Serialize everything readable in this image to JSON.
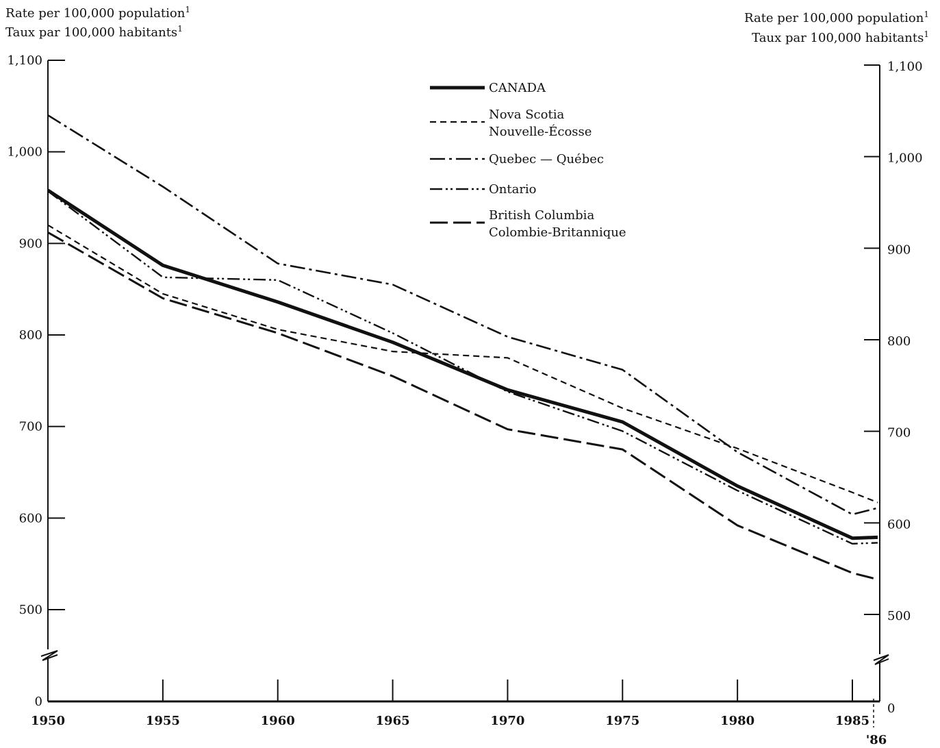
{
  "chart_data": {
    "type": "line",
    "title": "",
    "ylabel_left": [
      "Rate per 100,000 population",
      "Taux par 100,000 habitants"
    ],
    "ylabel_right": [
      "Rate per 100,000 population",
      "Taux par 100,000 habitants"
    ],
    "ylabel_superscript": "1",
    "xlabel": "",
    "x_ticks": [
      "1950",
      "1955",
      "1960",
      "1965",
      "1970",
      "1975",
      "1980",
      "1985"
    ],
    "x_extra_tick": "'86",
    "y_ticks": [
      "0",
      "500",
      "600",
      "700",
      "800",
      "900",
      "1,000",
      "1,100"
    ],
    "ylim": [
      500,
      1100
    ],
    "y_axis_break": true,
    "grid": false,
    "legend_position": "top-center",
    "x": [
      1950,
      1955,
      1960,
      1965,
      1970,
      1975,
      1980,
      1985,
      1986
    ],
    "series": [
      {
        "name": "CANADA",
        "style": "thick-solid",
        "values": [
          958,
          876,
          836,
          792,
          740,
          705,
          635,
          578,
          579
        ]
      },
      {
        "name": "Nova Scotia\nNouvelle-Écosse",
        "style": "short-dash",
        "values": [
          920,
          845,
          806,
          782,
          775,
          720,
          676,
          628,
          617
        ]
      },
      {
        "name": "Quebec — Québec",
        "style": "dash-dot",
        "values": [
          1040,
          962,
          878,
          855,
          798,
          762,
          672,
          604,
          611
        ]
      },
      {
        "name": "Ontario",
        "style": "dash-dot-dot",
        "values": [
          957,
          863,
          860,
          802,
          738,
          695,
          630,
          572,
          573
        ]
      },
      {
        "name": "British Columbia\nColombie-Britannique",
        "style": "long-dash",
        "values": [
          912,
          840,
          802,
          755,
          697,
          675,
          592,
          540,
          533
        ]
      }
    ]
  }
}
